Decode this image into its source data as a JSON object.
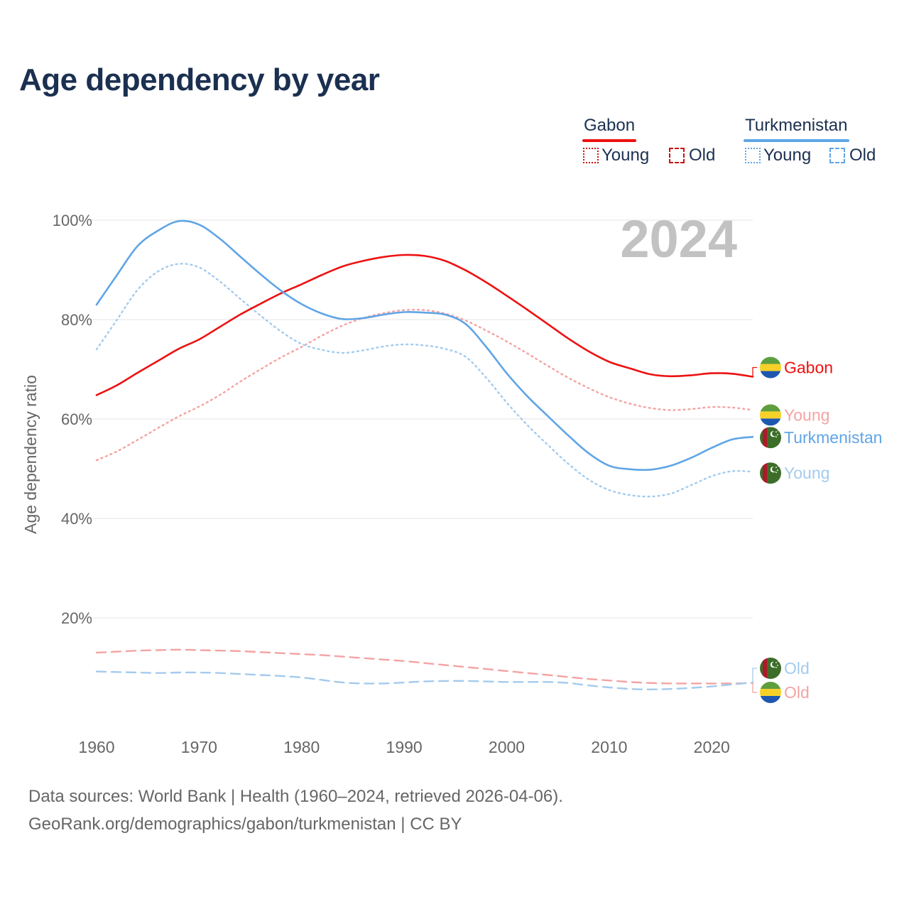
{
  "title": "Age dependency by year",
  "legend": {
    "countries": [
      {
        "name": "Gabon",
        "color": "#ee1111"
      },
      {
        "name": "Turkmenistan",
        "color": "#5fa5e6"
      }
    ],
    "young_label": "Young",
    "old_label": "Old"
  },
  "year_watermark": "2024",
  "footer": {
    "line1": "Data sources: World Bank | Health (1960–2024, retrieved 2026-04-06).",
    "line2": "GeoRank.org/demographics/gabon/turkmenistan | CC BY"
  },
  "chart_data": {
    "type": "line",
    "title": "Age dependency by year",
    "xlabel": "",
    "ylabel": "Age dependency ratio",
    "xlim": [
      1960,
      2024
    ],
    "ylim": [
      0,
      100
    ],
    "x_ticks": [
      1960,
      1970,
      1980,
      1990,
      2000,
      2010,
      2020
    ],
    "y_ticks": [
      20,
      40,
      60,
      80,
      100
    ],
    "y_tick_labels": [
      "20%",
      "40%",
      "60%",
      "80%",
      "100%"
    ],
    "grid": true,
    "x": [
      1960,
      1962,
      1964,
      1966,
      1968,
      1970,
      1972,
      1974,
      1976,
      1978,
      1980,
      1982,
      1984,
      1986,
      1988,
      1990,
      1992,
      1994,
      1996,
      1998,
      2000,
      2002,
      2004,
      2006,
      2008,
      2010,
      2012,
      2014,
      2016,
      2018,
      2020,
      2022,
      2024
    ],
    "series": [
      {
        "name": "Gabon",
        "end_label": "Gabon",
        "country": "Gabon",
        "kind": "total",
        "color": "#ee1111",
        "dash": "solid",
        "flag": "gabon",
        "values": [
          64.8,
          66.8,
          69.3,
          71.7,
          74.1,
          76.0,
          78.5,
          81.0,
          83.2,
          85.3,
          87.1,
          89.0,
          90.7,
          91.8,
          92.6,
          93.0,
          92.8,
          91.8,
          89.9,
          87.5,
          84.8,
          82.0,
          79.1,
          76.2,
          73.6,
          71.5,
          70.2,
          69.0,
          68.6,
          68.8,
          69.2,
          69.1,
          68.5
        ]
      },
      {
        "name": "Gabon Young",
        "end_label": "Young",
        "country": "Gabon",
        "kind": "young",
        "color": "#f4a3a3",
        "dash": "dot",
        "flag": "gabon",
        "values": [
          51.7,
          53.5,
          55.8,
          58.2,
          60.5,
          62.5,
          64.8,
          67.5,
          70.0,
          72.4,
          74.5,
          76.8,
          78.8,
          80.3,
          81.3,
          81.9,
          81.9,
          81.2,
          79.8,
          77.8,
          75.6,
          73.2,
          70.7,
          68.3,
          66.2,
          64.4,
          63.1,
          62.2,
          61.8,
          62.0,
          62.4,
          62.3,
          61.8
        ]
      },
      {
        "name": "Gabon Old",
        "end_label": "Old",
        "country": "Gabon",
        "kind": "old",
        "color": "#f4a3a3",
        "dash": "dash",
        "flag": "gabon",
        "values": [
          13.0,
          13.2,
          13.4,
          13.5,
          13.6,
          13.5,
          13.4,
          13.3,
          13.1,
          12.9,
          12.7,
          12.5,
          12.2,
          11.9,
          11.6,
          11.3,
          10.9,
          10.5,
          10.1,
          9.7,
          9.3,
          8.9,
          8.5,
          8.1,
          7.7,
          7.4,
          7.1,
          6.9,
          6.8,
          6.8,
          6.8,
          6.8,
          6.9
        ]
      },
      {
        "name": "Turkmenistan",
        "end_label": "Turkmenistan",
        "country": "Turkmenistan",
        "kind": "total",
        "color": "#5fa5e6",
        "dash": "solid",
        "flag": "turkmenistan",
        "values": [
          83.0,
          89.0,
          94.8,
          97.9,
          99.8,
          99.1,
          96.3,
          92.7,
          89.1,
          85.8,
          83.1,
          81.2,
          80.1,
          80.3,
          81.0,
          81.5,
          81.4,
          81.0,
          79.1,
          74.5,
          69.2,
          64.6,
          60.6,
          56.7,
          53.1,
          50.6,
          49.9,
          49.8,
          50.6,
          52.2,
          54.2,
          55.9,
          56.4
        ]
      },
      {
        "name": "Turkmenistan Young",
        "end_label": "Young",
        "country": "Turkmenistan",
        "kind": "young",
        "color": "#a3cbee",
        "dash": "dot",
        "flag": "turkmenistan",
        "values": [
          74.0,
          80.0,
          86.0,
          89.7,
          91.2,
          90.5,
          87.7,
          84.2,
          80.8,
          77.6,
          75.1,
          73.9,
          73.3,
          73.8,
          74.6,
          75.0,
          74.8,
          74.1,
          72.5,
          68.3,
          63.3,
          58.8,
          54.8,
          51.0,
          47.8,
          45.7,
          44.7,
          44.4,
          45.0,
          46.7,
          48.5,
          49.5,
          49.4
        ]
      },
      {
        "name": "Turkmenistan Old",
        "end_label": "Old",
        "country": "Turkmenistan",
        "kind": "old",
        "color": "#a3cbee",
        "dash": "dash",
        "flag": "turkmenistan",
        "values": [
          9.2,
          9.1,
          9.0,
          8.9,
          9.0,
          9.0,
          8.9,
          8.7,
          8.5,
          8.3,
          8.0,
          7.5,
          7.0,
          6.8,
          6.8,
          7.0,
          7.2,
          7.3,
          7.3,
          7.2,
          7.1,
          7.1,
          7.1,
          6.9,
          6.4,
          6.0,
          5.7,
          5.6,
          5.7,
          5.9,
          6.2,
          6.6,
          7.0
        ]
      }
    ]
  }
}
